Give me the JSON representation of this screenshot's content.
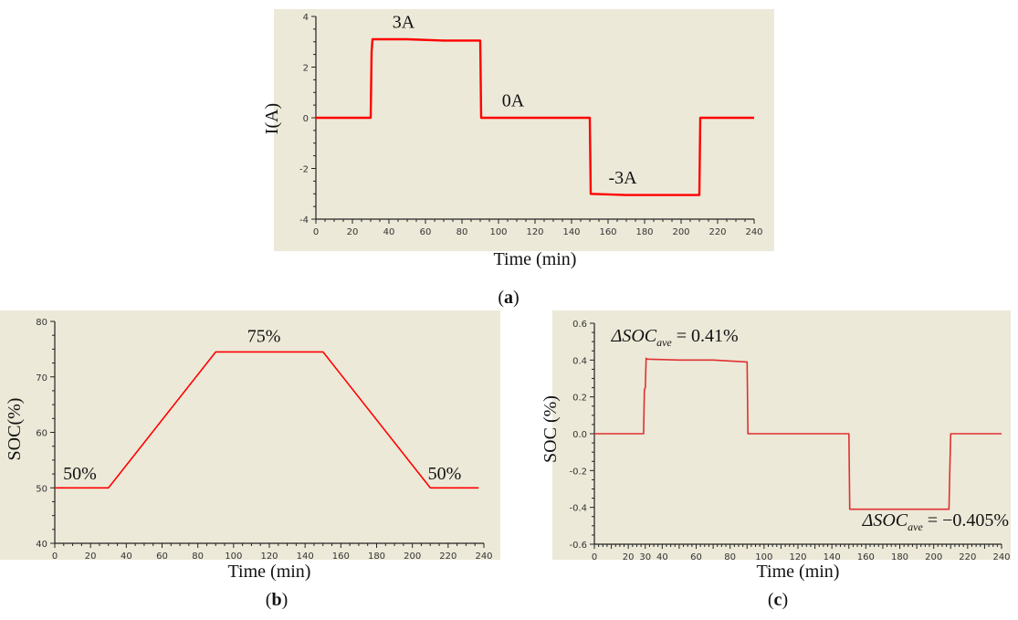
{
  "colors": {
    "plot_bg": "#ece9d8",
    "axis": "#222222",
    "series": "#ff0000",
    "series_c": "#e03030"
  },
  "panel_labels": {
    "a": "(a)",
    "b": "(b)",
    "c": "(c)"
  },
  "chart_data": [
    {
      "id": "a",
      "type": "line",
      "title": "",
      "xlabel": "Time (min)",
      "ylabel": "I(A)",
      "xlim": [
        0,
        240
      ],
      "ylim": [
        -4,
        4
      ],
      "xticks": [
        "0",
        "20",
        "40",
        "60",
        "80",
        "100",
        "120",
        "140",
        "160",
        "180",
        "200",
        "220",
        "240"
      ],
      "yticks": [
        "4",
        "2",
        "0",
        "-2",
        "-4"
      ],
      "series": [
        {
          "x": [
            0,
            30,
            30.5,
            31,
            50,
            70,
            90,
            90.5,
            110,
            130,
            150,
            150.5,
            170,
            190,
            210,
            210.5,
            225,
            240
          ],
          "y": [
            0,
            0,
            2.6,
            3.1,
            3.1,
            3.05,
            3.05,
            0,
            0,
            0,
            0,
            -3.0,
            -3.05,
            -3.05,
            -3.05,
            0,
            0,
            0
          ]
        }
      ],
      "annotations": [
        {
          "text": "3A",
          "x": 48,
          "y": 3.55
        },
        {
          "text": "0A",
          "x": 108,
          "y": 0.45
        },
        {
          "text": "-3A",
          "x": 168,
          "y": -2.6
        }
      ]
    },
    {
      "id": "b",
      "type": "line",
      "title": "",
      "xlabel": "Time (min)",
      "ylabel": "SOC(%)",
      "xlim": [
        0,
        240
      ],
      "ylim": [
        40,
        80
      ],
      "xticks": [
        "0",
        "20",
        "40",
        "60",
        "80",
        "100",
        "120",
        "140",
        "160",
        "180",
        "200",
        "220",
        "240"
      ],
      "yticks": [
        "80",
        "70",
        "60",
        "50",
        "40"
      ],
      "series": [
        {
          "x": [
            0,
            30,
            90,
            150,
            210,
            237
          ],
          "y": [
            50,
            50,
            74.5,
            74.5,
            50,
            50
          ]
        }
      ],
      "annotations": [
        {
          "text": "50%",
          "x": 14,
          "y": 51.5
        },
        {
          "text": "75%",
          "x": 117,
          "y": 76.3
        },
        {
          "text": "50%",
          "x": 218,
          "y": 51.5
        }
      ]
    },
    {
      "id": "c",
      "type": "line",
      "title": "",
      "xlabel": "Time (min)",
      "ylabel": "SOC (%)",
      "xlim": [
        0,
        240
      ],
      "ylim": [
        -0.6,
        0.6
      ],
      "xticks": [
        "0",
        "10",
        "20",
        "30",
        "40",
        "50",
        "60",
        "70",
        "80",
        "90",
        "100",
        "110",
        "120",
        "130",
        "140",
        "150",
        "160",
        "170",
        "180",
        "190",
        "200",
        "210",
        "220",
        "230",
        "240"
      ],
      "xtick_labels_shown": [
        "0",
        "20",
        "30",
        "40",
        "60",
        "80",
        "100",
        "120",
        "140",
        "160",
        "180",
        "200",
        "220",
        "240"
      ],
      "yticks": [
        "0.6",
        "0.4",
        "0.2",
        "0.0",
        "-0.2",
        "-0.4",
        "-0.6"
      ],
      "series": [
        {
          "x": [
            0,
            29,
            29.5,
            30,
            30.5,
            31,
            50,
            70,
            90,
            90.5,
            110,
            130,
            150,
            150.5,
            170,
            190,
            209,
            209.5,
            210,
            225,
            240
          ],
          "y": [
            0,
            0,
            0.24,
            0.25,
            0.41,
            0.405,
            0.4,
            0.4,
            0.39,
            0,
            0,
            0,
            0,
            -0.41,
            -0.41,
            -0.41,
            -0.41,
            -0.2,
            0,
            0,
            0
          ]
        }
      ],
      "annotations": [
        {
          "text": "ΔSOC",
          "sub": "ave",
          "rest": " = 0.41%",
          "x": 10,
          "y": 0.5
        },
        {
          "text": "ΔSOC",
          "sub": "ave",
          "rest": " = −0.405%",
          "x": 158,
          "y": -0.5
        }
      ]
    }
  ]
}
